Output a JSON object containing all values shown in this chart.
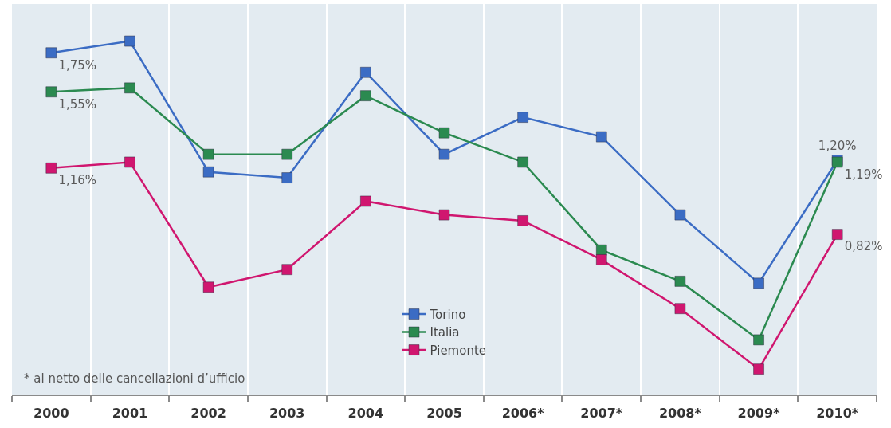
{
  "chart_data": {
    "type": "line",
    "categories": [
      "2000",
      "2001",
      "2002",
      "2003",
      "2004",
      "2005",
      "2006*",
      "2007*",
      "2008*",
      "2009*",
      "2010*"
    ],
    "series": [
      {
        "name": "Torino",
        "color": "#3b6cc4",
        "values": [
          1.75,
          1.81,
          1.14,
          1.11,
          1.65,
          1.23,
          1.42,
          1.32,
          0.92,
          0.57,
          1.2
        ],
        "value_labels": [
          "1,75%",
          null,
          null,
          null,
          null,
          null,
          null,
          null,
          null,
          null,
          "1,20%"
        ]
      },
      {
        "name": "Italia",
        "color": "#2b8a50",
        "values": [
          1.55,
          1.57,
          1.23,
          1.23,
          1.53,
          1.34,
          1.19,
          0.74,
          0.58,
          0.28,
          1.19
        ],
        "value_labels": [
          "1,55%",
          null,
          null,
          null,
          null,
          null,
          null,
          null,
          null,
          null,
          "1,19%"
        ]
      },
      {
        "name": "Piemonte",
        "color": "#d0166f",
        "values": [
          1.16,
          1.19,
          0.55,
          0.64,
          0.99,
          0.92,
          0.89,
          0.69,
          0.44,
          0.13,
          0.82
        ],
        "value_labels": [
          "1,16%",
          null,
          null,
          null,
          null,
          null,
          null,
          null,
          null,
          null,
          "0,82%"
        ]
      }
    ],
    "ylim": [
      0,
      2
    ],
    "tick_labels": "x",
    "grid": "x",
    "legend": "bottom",
    "marker": "square",
    "line_style": "solid",
    "annotations": [
      "* al netto delle cancellazioni d’ufficio"
    ]
  }
}
